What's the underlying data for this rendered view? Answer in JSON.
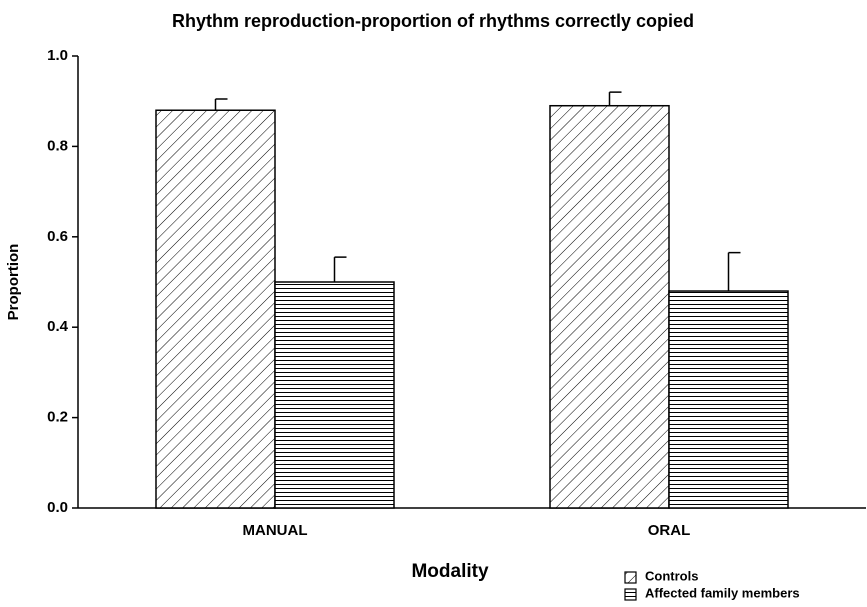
{
  "chart_data": {
    "type": "bar",
    "title": "Rhythm reproduction-proportion of rhythms correctly copied",
    "xlabel": "Modality",
    "ylabel": "Proportion",
    "categories": [
      "MANUAL",
      "ORAL"
    ],
    "series": [
      {
        "name": "Controls",
        "color": "#000000",
        "pattern": "diagonal",
        "values": [
          0.88,
          0.89
        ],
        "errors": [
          0.025,
          0.03
        ]
      },
      {
        "name": "Affected family members",
        "color": "#000000",
        "pattern": "horizontal",
        "values": [
          0.5,
          0.48
        ],
        "errors": [
          0.055,
          0.085
        ]
      }
    ],
    "ylim": [
      0,
      1
    ],
    "yticks": [
      {
        "value": 0,
        "label": "0.0"
      },
      0.2,
      0.4,
      0.6,
      0.8,
      {
        "value": 1,
        "label": "1.0"
      }
    ],
    "grid": false,
    "legend": "lower right"
  }
}
